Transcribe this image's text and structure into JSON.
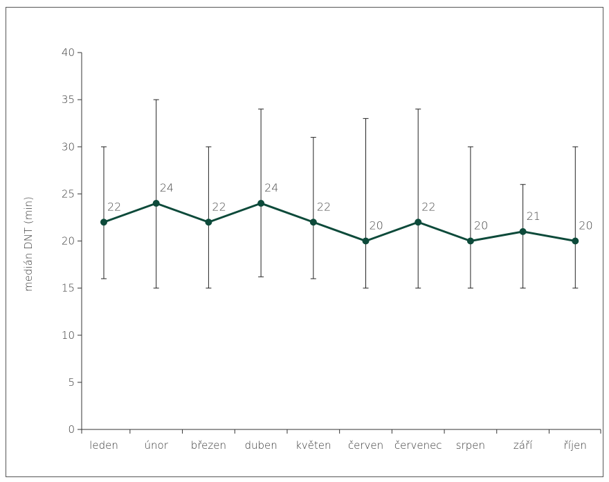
{
  "chart_data": {
    "type": "line",
    "title": "",
    "xlabel": "",
    "ylabel": "medián DNT (min)",
    "ylim": [
      0,
      40
    ],
    "yticks": [
      0,
      5,
      10,
      15,
      20,
      25,
      30,
      35,
      40
    ],
    "grid": false,
    "categories": [
      "leden",
      "únor",
      "březen",
      "duben",
      "květen",
      "červen",
      "červenec",
      "srpen",
      "září",
      "říjen"
    ],
    "series": [
      {
        "values": [
          22,
          24,
          22,
          24,
          22,
          20,
          22,
          20,
          21,
          20
        ],
        "error_low": [
          16,
          15,
          15,
          16.2,
          16,
          15,
          15,
          15,
          15,
          15
        ],
        "error_high": [
          30,
          35,
          30,
          34,
          31,
          33,
          34,
          30,
          26,
          30
        ],
        "color": "#0d4a3a"
      }
    ]
  }
}
